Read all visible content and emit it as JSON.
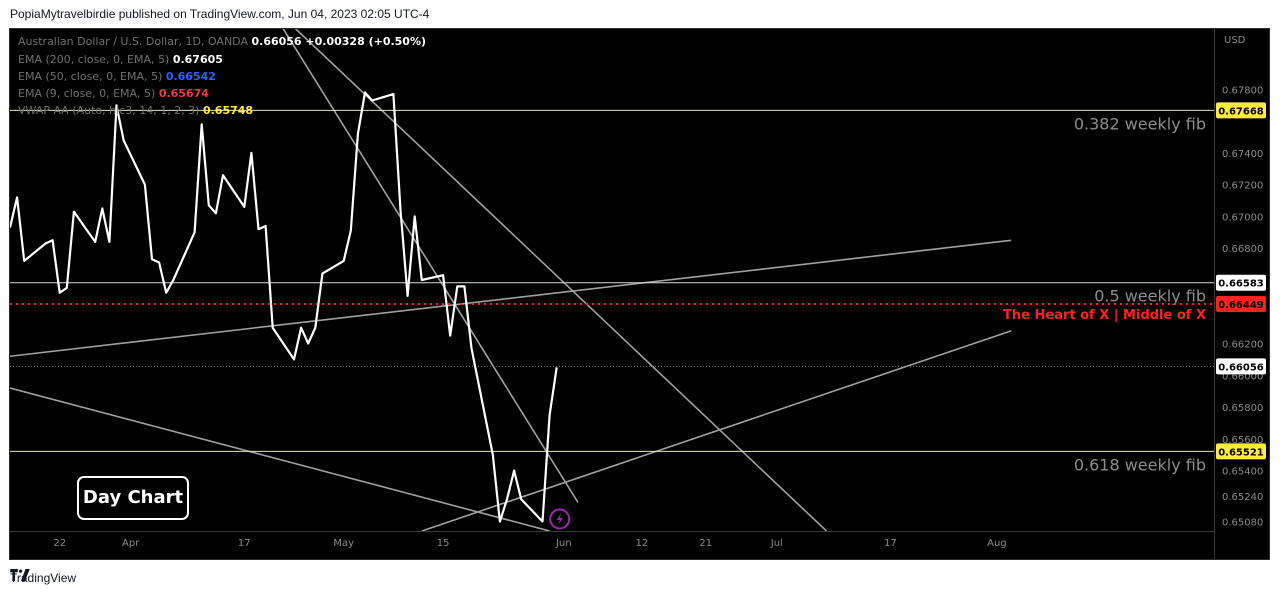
{
  "header": {
    "caption": "PopiaMytravelbirdie published on TradingView.com, Jun 04, 2023 02:05 UTC-4"
  },
  "legend": {
    "symbol": "Australian Dollar / U.S. Dollar, 1D, OANDA",
    "symbol_price": "0.66056",
    "symbol_change": "+0.00328 (+0.50%)",
    "indicators": [
      {
        "label": "EMA (200, close, 0, EMA, 5)",
        "value": "0.67605",
        "color": "#ffffff"
      },
      {
        "label": "EMA (50, close, 0, EMA, 5)",
        "value": "0.66542",
        "color": "#2962ff"
      },
      {
        "label": "EMA (9, close, 0, EMA, 5)",
        "value": "0.65674",
        "color": "#f23645"
      },
      {
        "label": "VWAP AA (Auto, hlc3, 14, 1, 2, 3)",
        "value": "0.65748",
        "color": "#ffeb3b"
      }
    ]
  },
  "colors": {
    "background": "#000000",
    "price_line": "#ffffff",
    "trendline": "#a0a0a0",
    "heart_line": "#ff2020",
    "axis_text": "#8a8a8a",
    "fib_label": "#8c8c8c",
    "badge_yellow": "#ffeb3b",
    "badge_red": "#ff2020",
    "badge_white": "#ffffff",
    "alert_icon": "#9c27b0"
  },
  "chart_data": {
    "type": "line",
    "currency_label": "USD",
    "ylim": [
      0.6502,
      0.6818
    ],
    "y_ticks": [
      {
        "value": 0.678,
        "label": "0.67800"
      },
      {
        "value": 0.674,
        "label": "0.67400"
      },
      {
        "value": 0.672,
        "label": "0.67200"
      },
      {
        "value": 0.67,
        "label": "0.67000"
      },
      {
        "value": 0.668,
        "label": "0.66800"
      },
      {
        "value": 0.662,
        "label": "0.66200"
      },
      {
        "value": 0.66,
        "label": "0.66000"
      },
      {
        "value": 0.658,
        "label": "0.65800"
      },
      {
        "value": 0.656,
        "label": "0.65600"
      },
      {
        "value": 0.654,
        "label": "0.65400"
      },
      {
        "value": 0.6524,
        "label": "0.65240"
      },
      {
        "value": 0.6508,
        "label": "0.65080"
      }
    ],
    "x_ticks": [
      {
        "label": "22",
        "date": "2023-03-22"
      },
      {
        "label": "Apr",
        "date": "2023-04-01"
      },
      {
        "label": "17",
        "date": "2023-04-17"
      },
      {
        "label": "May",
        "date": "2023-05-01"
      },
      {
        "label": "15",
        "date": "2023-05-15"
      },
      {
        "label": "Jun",
        "date": "2023-06-01"
      },
      {
        "label": "12",
        "date": "2023-06-12"
      },
      {
        "label": "21",
        "date": "2023-06-21"
      },
      {
        "label": "Jul",
        "date": "2023-07-01"
      },
      {
        "label": "17",
        "date": "2023-07-17"
      },
      {
        "label": "Aug",
        "date": "2023-08-01"
      }
    ],
    "series": [
      {
        "points": [
          [
            "2023-03-15",
            0.6693
          ],
          [
            "2023-03-16",
            0.6712
          ],
          [
            "2023-03-17",
            0.6672
          ],
          [
            "2023-03-20",
            0.6683
          ],
          [
            "2023-03-21",
            0.6685
          ],
          [
            "2023-03-22",
            0.6652
          ],
          [
            "2023-03-23",
            0.6655
          ],
          [
            "2023-03-24",
            0.6703
          ],
          [
            "2023-03-27",
            0.6684
          ],
          [
            "2023-03-28",
            0.6705
          ],
          [
            "2023-03-29",
            0.6684
          ],
          [
            "2023-03-30",
            0.677
          ],
          [
            "2023-03-31",
            0.6748
          ],
          [
            "2023-04-03",
            0.672
          ],
          [
            "2023-04-04",
            0.6673
          ],
          [
            "2023-04-05",
            0.6671
          ],
          [
            "2023-04-06",
            0.6652
          ],
          [
            "2023-04-07",
            0.666
          ],
          [
            "2023-04-10",
            0.669
          ],
          [
            "2023-04-11",
            0.6758
          ],
          [
            "2023-04-12",
            0.6707
          ],
          [
            "2023-04-13",
            0.6702
          ],
          [
            "2023-04-14",
            0.6726
          ],
          [
            "2023-04-17",
            0.6706
          ],
          [
            "2023-04-18",
            0.674
          ],
          [
            "2023-04-19",
            0.6692
          ],
          [
            "2023-04-20",
            0.6694
          ],
          [
            "2023-04-21",
            0.663
          ],
          [
            "2023-04-24",
            0.661
          ],
          [
            "2023-04-25",
            0.663
          ],
          [
            "2023-04-26",
            0.662
          ],
          [
            "2023-04-27",
            0.663
          ],
          [
            "2023-04-28",
            0.6664
          ],
          [
            "2023-05-01",
            0.6672
          ],
          [
            "2023-05-02",
            0.6691
          ],
          [
            "2023-05-03",
            0.6752
          ],
          [
            "2023-05-04",
            0.6778
          ],
          [
            "2023-05-05",
            0.6773
          ],
          [
            "2023-05-08",
            0.6777
          ],
          [
            "2023-05-09",
            0.6704
          ],
          [
            "2023-05-10",
            0.665
          ],
          [
            "2023-05-11",
            0.67
          ],
          [
            "2023-05-12",
            0.666
          ],
          [
            "2023-05-15",
            0.6663
          ],
          [
            "2023-05-16",
            0.6625
          ],
          [
            "2023-05-17",
            0.6656
          ],
          [
            "2023-05-18",
            0.6656
          ],
          [
            "2023-05-19",
            0.6617
          ],
          [
            "2023-05-22",
            0.655
          ],
          [
            "2023-05-23",
            0.6508
          ],
          [
            "2023-05-24",
            0.6522
          ],
          [
            "2023-05-25",
            0.654
          ],
          [
            "2023-05-26",
            0.6522
          ],
          [
            "2023-05-29",
            0.6508
          ],
          [
            "2023-05-30",
            0.6575
          ],
          [
            "2023-05-31",
            0.6605
          ]
        ]
      }
    ],
    "horizontal_levels": [
      {
        "label": "0.382 weekly fib",
        "value": 0.67668,
        "badge": "0.67668",
        "style": "fib-yellow"
      },
      {
        "label": "0.5 weekly fib",
        "value": 0.66583,
        "badge": "0.66583",
        "style": "fib-white"
      },
      {
        "label": "The Heart of X | Middle of X",
        "value": 0.66449,
        "badge": "0.66449",
        "style": "heart"
      },
      {
        "label": "0.618 weekly fib",
        "value": 0.65521,
        "badge": "0.65521",
        "style": "fib-yellow"
      }
    ],
    "last_price": {
      "value": 0.66056,
      "badge": "0.66056"
    },
    "trendlines": [
      {
        "from": [
          "2023-03-15",
          0.6612
        ],
        "to": [
          "2023-08-03",
          0.6685
        ]
      },
      {
        "from": [
          "2023-05-12",
          0.6502
        ],
        "to": [
          "2023-08-03",
          0.6628
        ]
      },
      {
        "from": [
          "2023-03-15",
          0.6592
        ],
        "to": [
          "2023-05-30",
          0.6502
        ]
      },
      {
        "from": [
          "2023-04-20",
          0.6836
        ],
        "to": [
          "2023-06-03",
          0.652
        ]
      },
      {
        "from": [
          "2023-04-20",
          0.6836
        ],
        "to": [
          "2023-07-08",
          0.6502
        ]
      }
    ]
  },
  "annotations": {
    "day_chart_label": "Day Chart"
  },
  "footer": {
    "brand": "TradingView"
  }
}
